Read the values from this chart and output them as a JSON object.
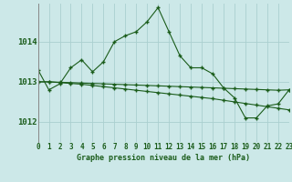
{
  "title": "Graphe pression niveau de la mer (hPa)",
  "background_color": "#cce8e8",
  "grid_color": "#aacfcf",
  "line_color": "#1a5c1a",
  "x_labels": [
    "0",
    "1",
    "2",
    "3",
    "4",
    "5",
    "6",
    "7",
    "8",
    "9",
    "10",
    "11",
    "12",
    "13",
    "14",
    "15",
    "16",
    "17",
    "18",
    "19",
    "20",
    "21",
    "22",
    "23"
  ],
  "yticks": [
    1012,
    1013,
    1014
  ],
  "ylim": [
    1011.5,
    1014.95
  ],
  "xlim": [
    0,
    23
  ],
  "series1": [
    1013.3,
    1012.8,
    1012.95,
    1013.35,
    1013.55,
    1013.25,
    1013.5,
    1014.0,
    1014.15,
    1014.25,
    1014.5,
    1014.85,
    1014.25,
    1013.65,
    1013.35,
    1013.35,
    1013.2,
    1012.85,
    1012.6,
    1012.1,
    1012.1,
    1012.4,
    1012.45,
    1012.8
  ],
  "series2": [
    1013.0,
    1013.0,
    1012.98,
    1012.96,
    1012.94,
    1012.91,
    1012.88,
    1012.85,
    1012.82,
    1012.79,
    1012.76,
    1012.73,
    1012.7,
    1012.67,
    1012.64,
    1012.61,
    1012.58,
    1012.54,
    1012.5,
    1012.46,
    1012.42,
    1012.38,
    1012.34,
    1012.3
  ],
  "series3": [
    1013.0,
    1013.0,
    1012.99,
    1012.98,
    1012.97,
    1012.96,
    1012.95,
    1012.94,
    1012.93,
    1012.92,
    1012.91,
    1012.9,
    1012.89,
    1012.88,
    1012.87,
    1012.86,
    1012.85,
    1012.84,
    1012.83,
    1012.82,
    1012.81,
    1012.8,
    1012.79,
    1012.8
  ],
  "title_fontsize": 6.0,
  "tick_fontsize": 5.5,
  "ytick_fontsize": 6.5
}
